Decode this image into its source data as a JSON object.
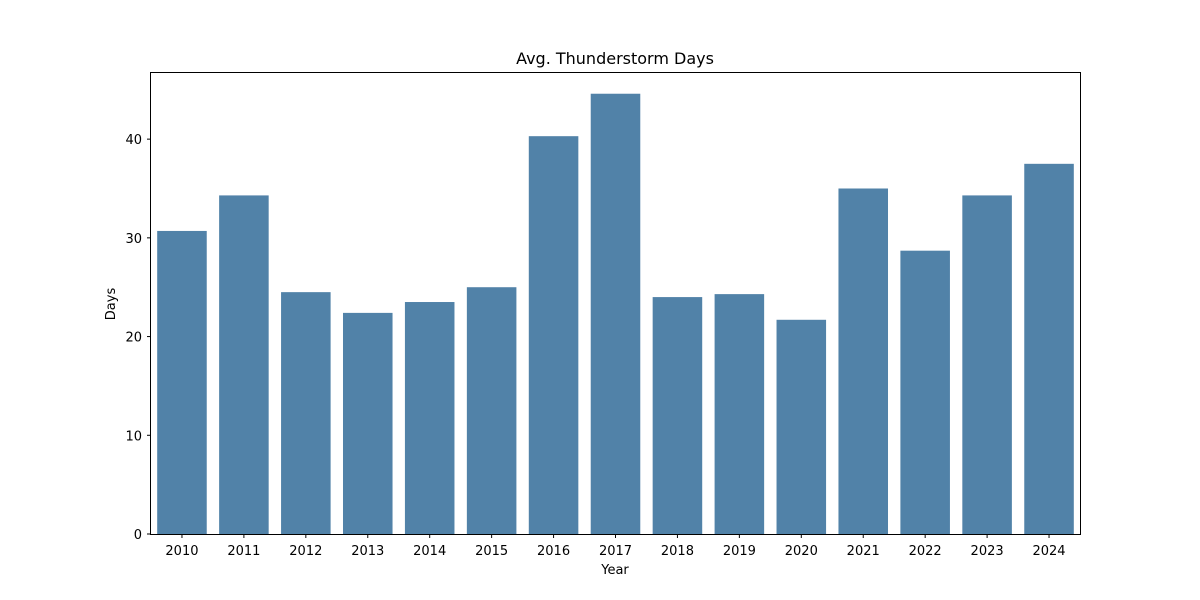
{
  "chart_data": {
    "type": "bar",
    "title": "Avg. Thunderstorm Days",
    "xlabel": "Year",
    "ylabel": "Days",
    "categories": [
      "2010",
      "2011",
      "2012",
      "2013",
      "2014",
      "2015",
      "2016",
      "2017",
      "2018",
      "2019",
      "2020",
      "2021",
      "2022",
      "2023",
      "2024"
    ],
    "values": [
      30.7,
      34.3,
      24.5,
      22.4,
      23.5,
      25.0,
      40.3,
      44.6,
      24.0,
      24.3,
      21.7,
      35.0,
      28.7,
      34.3,
      37.5
    ],
    "ylim": [
      0,
      46.7
    ],
    "yticks": [
      0,
      10,
      20,
      30,
      40
    ],
    "bar_color": "#5182a8",
    "grid": false,
    "legend": "none"
  }
}
